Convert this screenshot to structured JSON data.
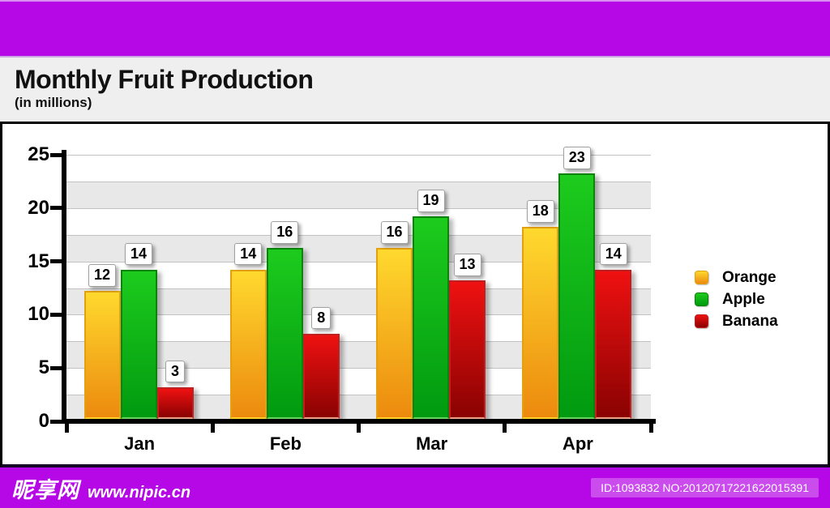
{
  "header": {
    "title": "Monthly Fruit Production",
    "subtitle": "(in millions)"
  },
  "chart_data": {
    "type": "bar",
    "categories": [
      "Jan",
      "Feb",
      "Mar",
      "Apr"
    ],
    "series": [
      {
        "name": "Orange",
        "values": [
          12,
          14,
          16,
          18
        ],
        "color_top": "#ffd92e",
        "color_bottom": "#ec8a0e",
        "border": "#e3a010",
        "border_bottom": "#ffd22a"
      },
      {
        "name": "Apple",
        "values": [
          14,
          16,
          19,
          23
        ],
        "color_top": "#1dcb1d",
        "color_bottom": "#019a10",
        "border": "#0a850a",
        "border_bottom": "#66d45e"
      },
      {
        "name": "Banana",
        "values": [
          3,
          8,
          13,
          14
        ],
        "color_top": "#ef1111",
        "color_bottom": "#8a0202",
        "border": "#c02020",
        "border_bottom": "#efa088"
      }
    ],
    "ylim": [
      0,
      25
    ],
    "yticks": [
      0,
      5,
      10,
      15,
      20,
      25
    ],
    "grid_interval": 2.5,
    "band_color": "#e8e8e8",
    "band_alt_color": "#ffffff",
    "legend_position": "right",
    "value_labels": true
  },
  "footer": {
    "site_name": "昵享网",
    "site_url": "www.nipic.cn",
    "id_text": "ID:1093832 NO:20120717221622015391"
  },
  "colors": {
    "banner_purple": "#b607e6",
    "title_band": "#efefef",
    "axis_black": "#000000",
    "gridline": "#c2c2c2"
  }
}
